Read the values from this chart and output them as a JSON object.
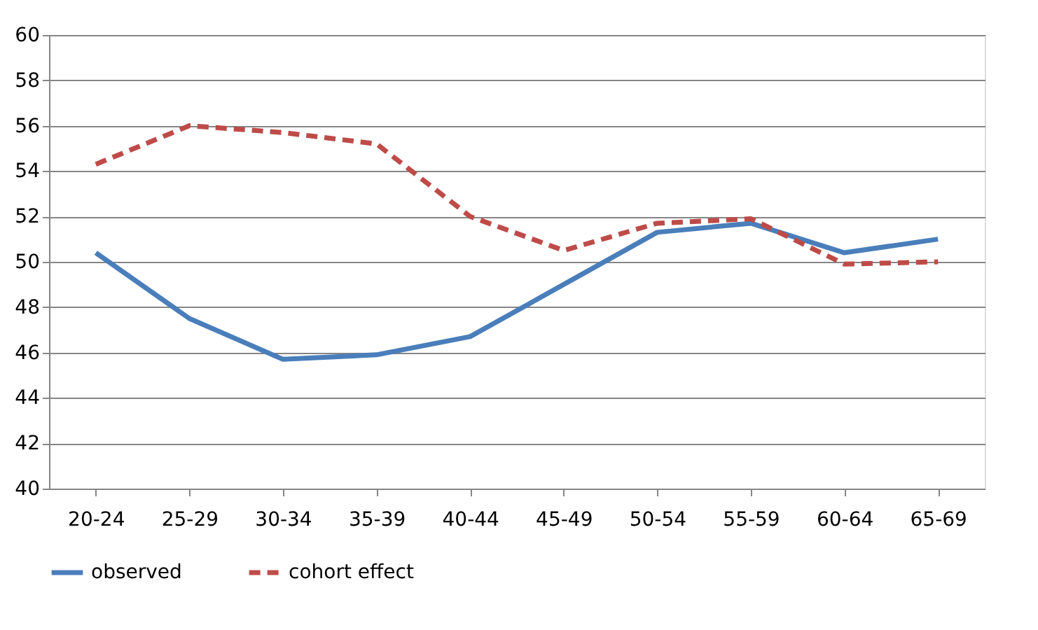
{
  "chart_data": {
    "type": "line",
    "categories": [
      "20-24",
      "25-29",
      "30-34",
      "35-39",
      "40-44",
      "45-49",
      "50-54",
      "55-59",
      "60-64",
      "65-69"
    ],
    "series": [
      {
        "name": "observed",
        "color": "#4a7ebb",
        "line_style": "solid",
        "values": [
          50.4,
          47.5,
          45.7,
          45.9,
          46.7,
          49.0,
          51.3,
          51.7,
          50.4,
          51.0
        ]
      },
      {
        "name": "cohort effect",
        "color": "#be4b48",
        "line_style": "dashed",
        "values": [
          54.3,
          56.0,
          55.7,
          55.2,
          52.0,
          50.5,
          51.7,
          51.9,
          49.9,
          50.0
        ]
      }
    ],
    "ylim": [
      40,
      60
    ],
    "yticks": [
      40,
      42,
      44,
      46,
      48,
      50,
      52,
      54,
      56,
      58,
      60
    ],
    "grid": "y",
    "legend": "bottom",
    "marker": "none"
  }
}
